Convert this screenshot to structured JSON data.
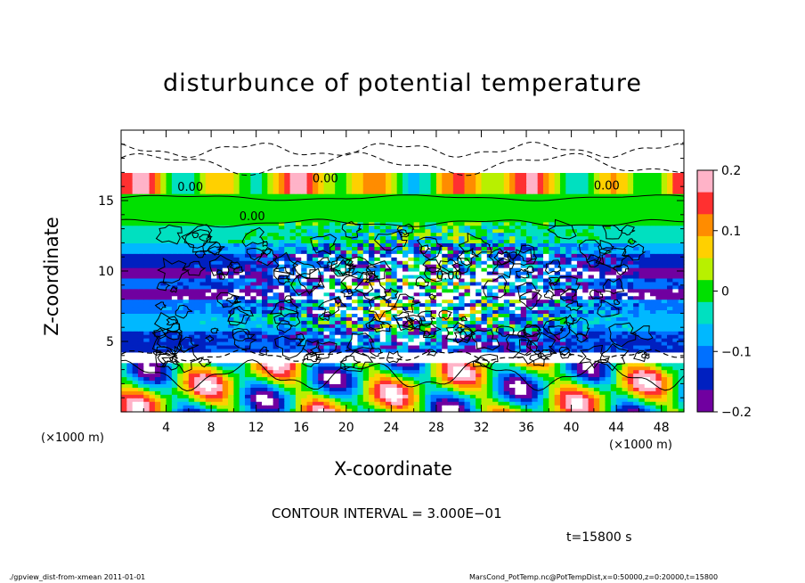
{
  "chart_data": {
    "type": "heatmap",
    "title": "disturbunce of potential temperature",
    "xlabel": "X-coordinate",
    "ylabel": "Z-coordinate",
    "x_unit_left": "(×1000 m)",
    "x_unit_right": "(×1000 m)",
    "xlim": [
      0,
      50
    ],
    "ylim": [
      0,
      20
    ],
    "x_ticks": [
      "4",
      "8",
      "12",
      "16",
      "20",
      "24",
      "28",
      "32",
      "36",
      "40",
      "44",
      "48"
    ],
    "y_ticks": [
      "5",
      "10",
      "15"
    ],
    "colorbar": {
      "range": [
        -0.2,
        0.2
      ],
      "ticks": [
        "0.2",
        "0.1",
        "0",
        "−0.1",
        "−0.2"
      ],
      "colors": [
        "#ffb3c8",
        "#ff3030",
        "#ff8c00",
        "#ffd000",
        "#b8f000",
        "#00e000",
        "#00e0c0",
        "#00b8ff",
        "#0070ff",
        "#0020c0",
        "#7000a0"
      ]
    },
    "contour_labels": [
      "0.00",
      "0.00",
      "0.00",
      "0.00",
      "0.00"
    ],
    "contour_interval": "CONTOUR INTERVAL = 3.000E−01",
    "time": "t=15800 s"
  },
  "footer": {
    "left": "./gpview_dist-from-xmean   2011-01-01",
    "right": "MarsCond_PotTemp.nc@PotTempDist,x=0:50000,z=0:20000,t=15800"
  }
}
